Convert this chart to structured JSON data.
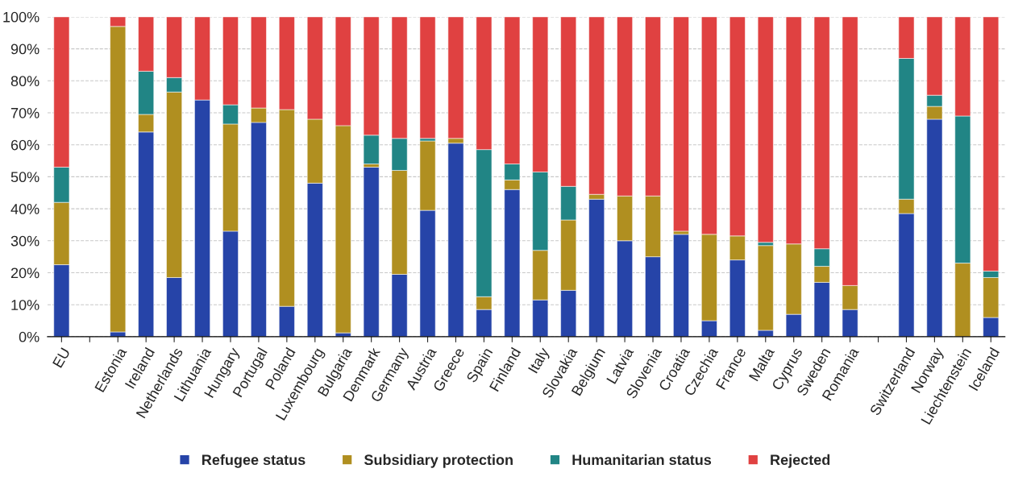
{
  "chart_data": {
    "type": "bar",
    "stacked": true,
    "categories": [
      "EU",
      null,
      "Estonia",
      "Ireland",
      "Netherlands",
      "Lithuania",
      "Hungary",
      "Portugal",
      "Poland",
      "Luxembourg",
      "Bulgaria",
      "Denmark",
      "Germany",
      "Austria",
      "Greece",
      "Spain",
      "Finland",
      "Italy",
      "Slovakia",
      "Belgium",
      "Latvia",
      "Slovenia",
      "Croatia",
      "Czechia",
      "France",
      "Malta",
      "Cyprus",
      "Sweden",
      "Romania",
      null,
      "Switzerland",
      "Norway",
      "Liechtenstein",
      "Iceland"
    ],
    "series": [
      {
        "name": "Refugee status",
        "color": "#2644a8",
        "values": [
          22.5,
          null,
          1.5,
          64,
          18.5,
          74,
          33,
          67,
          9.5,
          48,
          1.2,
          53,
          19.5,
          39.5,
          60.5,
          8.5,
          46,
          11.5,
          14.5,
          43,
          30,
          25,
          32,
          5,
          24,
          2,
          7,
          17,
          8.5,
          null,
          38.5,
          68,
          0,
          6
        ]
      },
      {
        "name": "Subsidiary protection",
        "color": "#b08f20",
        "values": [
          19.5,
          null,
          95.5,
          5.5,
          58,
          0,
          33.5,
          4.5,
          61.5,
          20,
          64.8,
          1,
          32.5,
          21.7,
          1.5,
          4,
          3,
          15.5,
          22,
          1.5,
          14,
          19,
          1,
          27,
          7.5,
          26.5,
          22,
          5,
          7.5,
          null,
          4.5,
          4,
          23,
          12.5
        ]
      },
      {
        "name": "Humanitarian status",
        "color": "#218585",
        "values": [
          11,
          null,
          0,
          13.5,
          4.5,
          0,
          6,
          0,
          0,
          0,
          0,
          9,
          10,
          0.8,
          0,
          46,
          5,
          24.5,
          10.5,
          0,
          0,
          0,
          0,
          0,
          0,
          1,
          0,
          5.5,
          0,
          null,
          44,
          3.5,
          46,
          2
        ]
      },
      {
        "name": "Rejected",
        "color": "#e04141",
        "values": [
          47,
          null,
          3,
          17,
          19,
          26,
          27.5,
          28.5,
          29,
          32,
          34,
          37,
          38,
          38,
          38,
          41.5,
          46,
          48.5,
          53,
          55.5,
          56,
          56,
          67,
          68,
          68.5,
          70.5,
          71,
          72.5,
          84,
          null,
          13,
          24.5,
          31,
          79.5
        ]
      }
    ],
    "ylim": [
      0,
      100
    ],
    "yticks": [
      {
        "value": 0,
        "label": "0%"
      },
      {
        "value": 10,
        "label": "10%"
      },
      {
        "value": 20,
        "label": "20%"
      },
      {
        "value": 30,
        "label": "30%"
      },
      {
        "value": 40,
        "label": "40%"
      },
      {
        "value": 50,
        "label": "50%"
      },
      {
        "value": 60,
        "label": "60%"
      },
      {
        "value": 70,
        "label": "70%"
      },
      {
        "value": 80,
        "label": "80%"
      },
      {
        "value": 90,
        "label": "90%"
      },
      {
        "value": 100,
        "label": "100%"
      }
    ],
    "grid": "y",
    "legend": "bottom"
  }
}
